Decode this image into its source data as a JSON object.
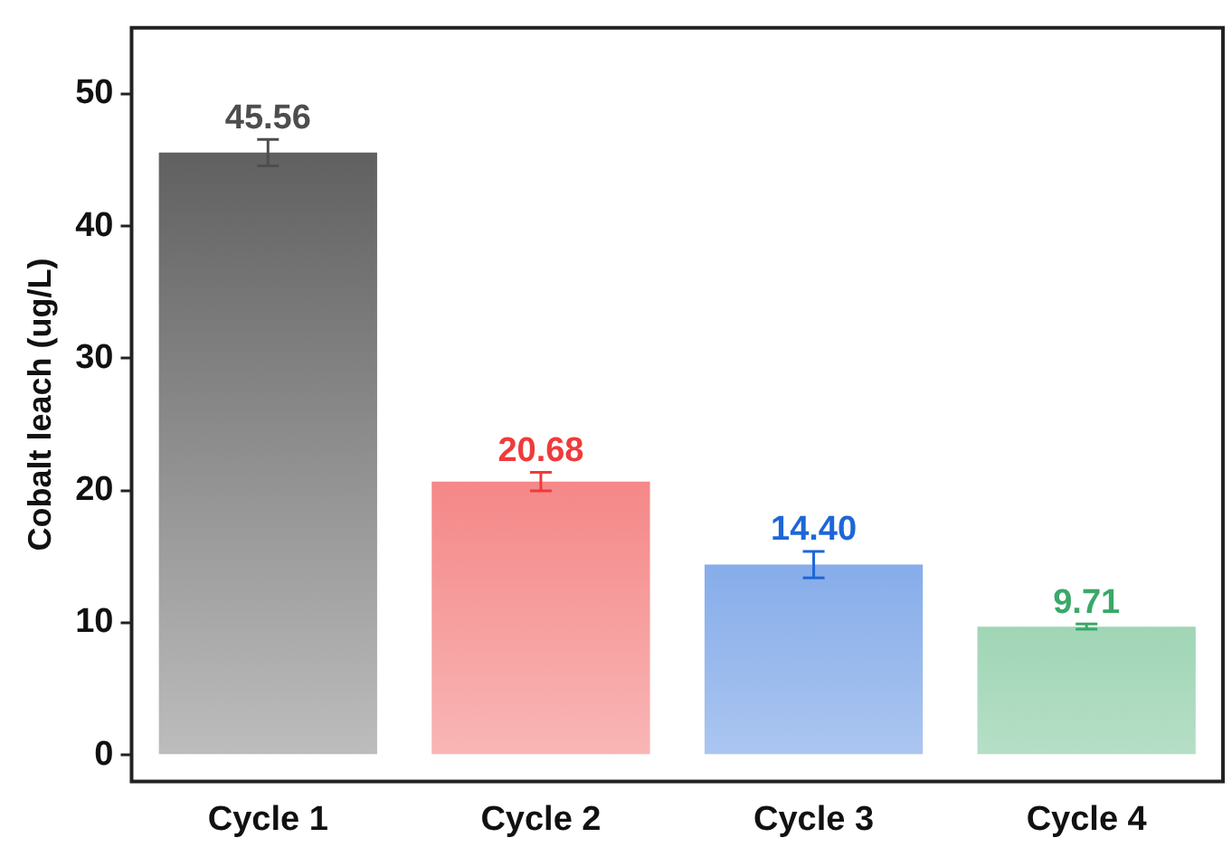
{
  "chart_data": {
    "type": "bar",
    "ylabel": "Cobalt leach (ug/L)",
    "categories": [
      "Cycle 1",
      "Cycle 2",
      "Cycle 3",
      "Cycle 4"
    ],
    "values": [
      45.56,
      20.68,
      14.4,
      9.71
    ],
    "value_labels": [
      "45.56",
      "20.68",
      "14.40",
      "9.71"
    ],
    "errors": [
      1.0,
      0.7,
      1.0,
      0.2
    ],
    "colors": [
      "#4d4d4d",
      "#ef3b3b",
      "#1e66d8",
      "#3aa868"
    ],
    "ylim": [
      -2,
      55
    ],
    "yticks": [
      0,
      10,
      20,
      30,
      40,
      50
    ],
    "grid": false,
    "legend": false
  }
}
